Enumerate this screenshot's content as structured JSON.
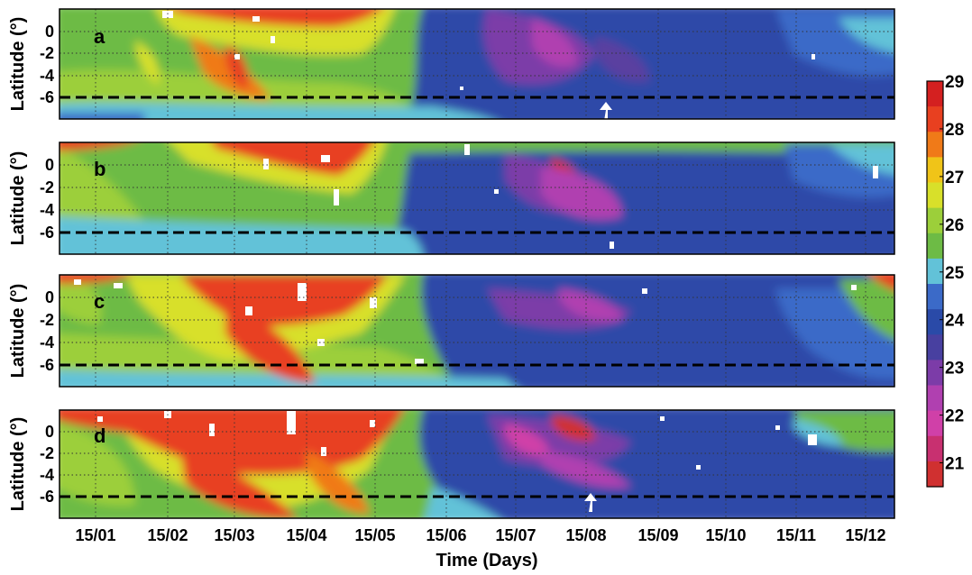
{
  "chart_data": {
    "type": "heatmap",
    "xlabel": "Time (Days)",
    "x_ticks": [
      "15/01",
      "15/02",
      "15/03",
      "15/04",
      "15/05",
      "15/06",
      "15/07",
      "15/08",
      "15/09",
      "15/10",
      "15/11",
      "15/12"
    ],
    "ylabel": "Latitude (°)",
    "y_ticks": [
      "0",
      "-2",
      "-4",
      "-6"
    ],
    "ylim": [
      -8,
      2
    ],
    "grid": true,
    "reference_line": {
      "y": -6,
      "style": "dashed",
      "color": "#000000"
    },
    "colorbar": {
      "ticks": [
        "29",
        "28",
        "27",
        "26",
        "25",
        "24",
        "23",
        "22",
        "21"
      ],
      "range": [
        20.5,
        29
      ],
      "reversed_direction": "top-high",
      "colors": [
        "#d42020",
        "#e84020",
        "#f07a18",
        "#f0c418",
        "#d8e02a",
        "#9ccf3a",
        "#6dbb45",
        "#62c2d8",
        "#3b6ac8",
        "#2a4aa8",
        "#4840a0",
        "#7c3ca8",
        "#b040b0",
        "#d040a8",
        "#c83070",
        "#d03030"
      ]
    },
    "panels": [
      {
        "label": "a",
        "arrow_date": "15/08",
        "marks": "white arrow near 15/08 at lat -6",
        "summary": [
          {
            "period": "15/01-15/05",
            "lat_range": [
              -6,
              2
            ],
            "value": 27
          },
          {
            "period": "15/02-15/05",
            "lat_range": [
              -2,
              2
            ],
            "value": 28.5
          },
          {
            "period": "15/06-15/12",
            "lat_range": [
              -8,
              2
            ],
            "value": 24.5
          },
          {
            "period": "15/07-15/09",
            "lat_range": [
              -4,
              2
            ],
            "value": 22.5
          }
        ]
      },
      {
        "label": "b",
        "arrow_date": "",
        "marks": "",
        "summary": [
          {
            "period": "15/01-15/05",
            "lat_range": [
              -6,
              2
            ],
            "value": 27
          },
          {
            "period": "15/03-15/05",
            "lat_range": [
              -2,
              2
            ],
            "value": 28.5
          },
          {
            "period": "15/06-15/12",
            "lat_range": [
              -8,
              2
            ],
            "value": 24.5
          },
          {
            "period": "15/08",
            "lat_range": [
              -2,
              1
            ],
            "value": 21.5
          }
        ]
      },
      {
        "label": "c",
        "arrow_date": "",
        "marks": "",
        "summary": [
          {
            "period": "15/01-15/05",
            "lat_range": [
              -6,
              2
            ],
            "value": 27.5
          },
          {
            "period": "15/02-15/05",
            "lat_range": [
              -6,
              2
            ],
            "value": 28.5
          },
          {
            "period": "15/06-15/12",
            "lat_range": [
              -8,
              2
            ],
            "value": 24.5
          },
          {
            "period": "15/07-15/09",
            "lat_range": [
              -2,
              1
            ],
            "value": 23
          }
        ]
      },
      {
        "label": "d",
        "arrow_date": "15/08",
        "marks": "white arrow near 15/08 at lat -6",
        "summary": [
          {
            "period": "15/01-15/05",
            "lat_range": [
              -8,
              2
            ],
            "value": 28.5
          },
          {
            "period": "15/06-15/12",
            "lat_range": [
              -8,
              2
            ],
            "value": 24.5
          },
          {
            "period": "15/07-15/08",
            "lat_range": [
              -2,
              1
            ],
            "value": 22
          },
          {
            "period": "15/08",
            "lat_range": [
              -1,
              1
            ],
            "value": 21
          }
        ]
      }
    ]
  }
}
